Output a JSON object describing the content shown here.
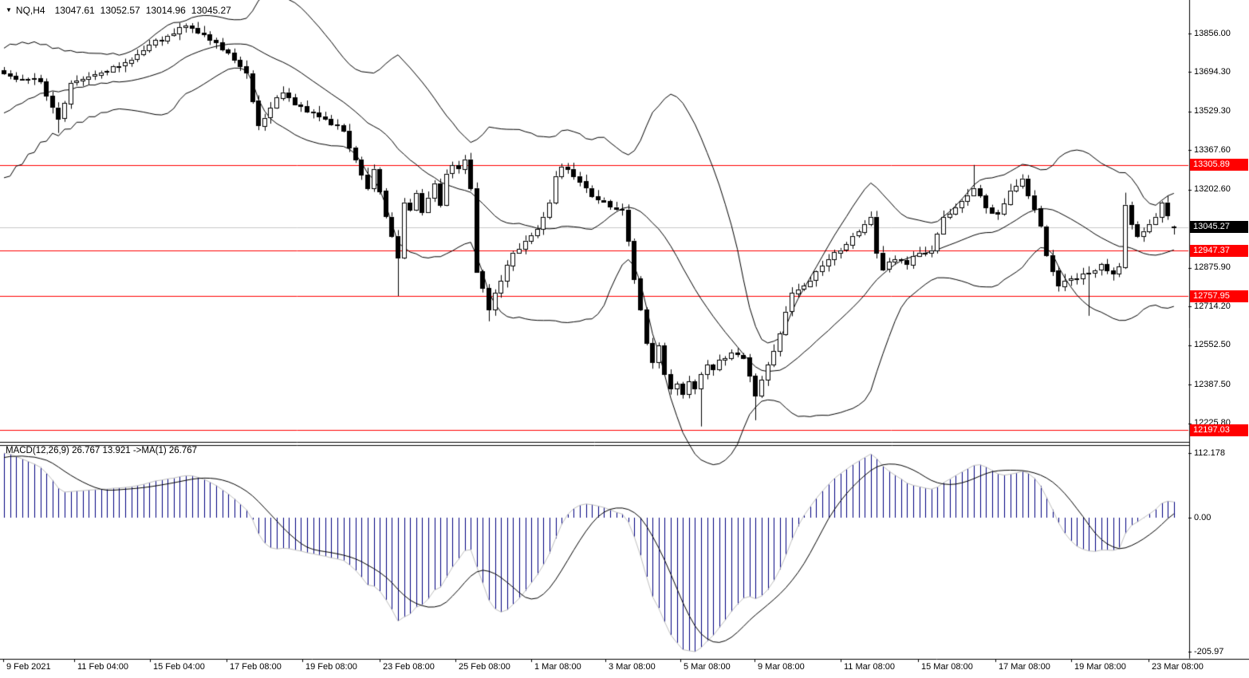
{
  "title": {
    "dropdown_icon": "▼",
    "symbol_period": "NQ,H4",
    "open": "13047.61",
    "high": "13052.57",
    "low": "13014.96",
    "close": "13045.27"
  },
  "macd": {
    "label": "MACD(12,26,9) 26.767 13.921  ->MA(1) 26.767"
  },
  "colors": {
    "background": "#ffffff",
    "foreground": "#000000",
    "bull_body": "#ffffff",
    "bear_body": "#000000",
    "band_line": "#000000",
    "level_line": "#ff0000",
    "level_badge_bg": "#ff0000",
    "level_badge_text": "#ffffff",
    "current_price_line": "#c8c8c8",
    "current_badge_bg": "#000000",
    "current_badge_text": "#ffffff",
    "macd_bar": "#000080",
    "macd_main_line": "#c0c0c0",
    "macd_signal_line": "#000000",
    "axis_text": "#000000"
  },
  "chart_data": {
    "type": "candlestick",
    "symbol": "NQ",
    "timeframe": "H4",
    "current_bar": {
      "open": 13047.61,
      "high": 13052.57,
      "low": 13014.96,
      "close": 13045.27
    },
    "current_price": 13045.27,
    "indicators": [
      {
        "name": "Bollinger Bands",
        "period": 20,
        "deviation": 2
      },
      {
        "name": "MACD",
        "fast": 12,
        "slow": 26,
        "signal": 9,
        "last_main": 26.767,
        "prev_main": 13.921,
        "last_signal": 26.767
      }
    ],
    "horizontal_levels": [
      {
        "label": "13305.89",
        "price": 13305.89
      },
      {
        "label": "12947.37",
        "price": 12947.37
      },
      {
        "label": "12757.95",
        "price": 12757.95
      },
      {
        "label": "12197.03",
        "price": 12197.03
      }
    ],
    "current_price_label": "13045.27",
    "price_axis_range": {
      "top": 13996.2,
      "bottom": 12150.8
    },
    "y_axis_ticks": [
      {
        "label": "13856.00",
        "value": 13856.0
      },
      {
        "label": "13694.30",
        "value": 13694.3
      },
      {
        "label": "13529.30",
        "value": 13529.3
      },
      {
        "label": "13367.60",
        "value": 13367.6
      },
      {
        "label": "13202.60",
        "value": 13202.6
      },
      {
        "label": "12875.90",
        "value": 12875.9
      },
      {
        "label": "12714.20",
        "value": 12714.2
      },
      {
        "label": "12552.50",
        "value": 12552.5
      },
      {
        "label": "12387.50",
        "value": 12387.5
      },
      {
        "label": "12225.80",
        "value": 12225.8
      }
    ],
    "macd_axis": {
      "max": {
        "label": "112.178",
        "value": 112.178
      },
      "zero": {
        "label": "0.00",
        "value": 0
      },
      "min": {
        "label": "-205.97",
        "value": -205.97
      }
    },
    "x_ticks": [
      {
        "label": "9 Feb 2021",
        "x": 8
      },
      {
        "label": "11 Feb 04:00",
        "x": 97
      },
      {
        "label": "15 Feb 04:00",
        "x": 192
      },
      {
        "label": "17 Feb 08:00",
        "x": 288
      },
      {
        "label": "19 Feb 08:00",
        "x": 383
      },
      {
        "label": "23 Feb 08:00",
        "x": 480
      },
      {
        "label": "25 Feb 08:00",
        "x": 575
      },
      {
        "label": "1 Mar 08:00",
        "x": 670
      },
      {
        "label": "3 Mar 08:00",
        "x": 763
      },
      {
        "label": "5 Mar 08:00",
        "x": 857
      },
      {
        "label": "9 Mar 08:00",
        "x": 950
      },
      {
        "label": "11 Mar 08:00",
        "x": 1058
      },
      {
        "label": "15 Mar 08:00",
        "x": 1155
      },
      {
        "label": "17 Mar 08:00",
        "x": 1252
      },
      {
        "label": "19 Mar 08:00",
        "x": 1347
      },
      {
        "label": "23 Mar 08:00",
        "x": 1444
      }
    ],
    "bar_count": 194,
    "close_anchors": [
      [
        0,
        13690
      ],
      [
        3,
        13665
      ],
      [
        6,
        13655
      ],
      [
        9,
        13500
      ],
      [
        11,
        13650
      ],
      [
        15,
        13685
      ],
      [
        19,
        13720
      ],
      [
        24,
        13810
      ],
      [
        28,
        13855
      ],
      [
        30,
        13890
      ],
      [
        32,
        13860
      ],
      [
        34,
        13830
      ],
      [
        36,
        13790
      ],
      [
        38,
        13745
      ],
      [
        40,
        13690
      ],
      [
        42,
        13470
      ],
      [
        44,
        13545
      ],
      [
        46,
        13610
      ],
      [
        48,
        13560
      ],
      [
        50,
        13530
      ],
      [
        53,
        13500
      ],
      [
        56,
        13450
      ],
      [
        58,
        13330
      ],
      [
        60,
        13210
      ],
      [
        61,
        13290
      ],
      [
        63,
        13090
      ],
      [
        64,
        13010
      ],
      [
        65,
        12920
      ],
      [
        66,
        13150
      ],
      [
        67,
        13120
      ],
      [
        68,
        13190
      ],
      [
        69,
        13110
      ],
      [
        70,
        13170
      ],
      [
        71,
        13230
      ],
      [
        72,
        13140
      ],
      [
        73,
        13270
      ],
      [
        74,
        13305
      ],
      [
        75,
        13290
      ],
      [
        76,
        13330
      ],
      [
        77,
        13210
      ],
      [
        78,
        12860
      ],
      [
        79,
        12790
      ],
      [
        80,
        12700
      ],
      [
        82,
        12820
      ],
      [
        84,
        12940
      ],
      [
        86,
        12990
      ],
      [
        88,
        13040
      ],
      [
        90,
        13150
      ],
      [
        91,
        13260
      ],
      [
        92,
        13300
      ],
      [
        93,
        13290
      ],
      [
        94,
        13260
      ],
      [
        96,
        13210
      ],
      [
        98,
        13160
      ],
      [
        100,
        13130
      ],
      [
        102,
        13120
      ],
      [
        103,
        12990
      ],
      [
        104,
        12830
      ],
      [
        105,
        12700
      ],
      [
        106,
        12560
      ],
      [
        107,
        12480
      ],
      [
        108,
        12550
      ],
      [
        109,
        12430
      ],
      [
        110,
        12370
      ],
      [
        111,
        12390
      ],
      [
        112,
        12345
      ],
      [
        113,
        12400
      ],
      [
        114,
        12370
      ],
      [
        115,
        12430
      ],
      [
        116,
        12470
      ],
      [
        117,
        12450
      ],
      [
        118,
        12490
      ],
      [
        120,
        12520
      ],
      [
        122,
        12500
      ],
      [
        124,
        12340
      ],
      [
        126,
        12470
      ],
      [
        128,
        12600
      ],
      [
        130,
        12770
      ],
      [
        132,
        12800
      ],
      [
        134,
        12860
      ],
      [
        136,
        12910
      ],
      [
        138,
        12950
      ],
      [
        140,
        13010
      ],
      [
        142,
        13060
      ],
      [
        143,
        13090
      ],
      [
        144,
        12940
      ],
      [
        145,
        12870
      ],
      [
        147,
        12910
      ],
      [
        149,
        12890
      ],
      [
        151,
        12940
      ],
      [
        153,
        12950
      ],
      [
        155,
        13090
      ],
      [
        157,
        13130
      ],
      [
        159,
        13180
      ],
      [
        160,
        13210
      ],
      [
        162,
        13130
      ],
      [
        164,
        13100
      ],
      [
        166,
        13200
      ],
      [
        168,
        13250
      ],
      [
        169,
        13180
      ],
      [
        171,
        13050
      ],
      [
        172,
        12930
      ],
      [
        174,
        12800
      ],
      [
        176,
        12830
      ],
      [
        178,
        12850
      ],
      [
        179,
        12855
      ],
      [
        181,
        12890
      ],
      [
        183,
        12850
      ],
      [
        184,
        12880
      ],
      [
        185,
        13140
      ],
      [
        186,
        13060
      ],
      [
        187,
        13010
      ],
      [
        188,
        13030
      ],
      [
        189,
        13060
      ],
      [
        190,
        13090
      ],
      [
        191,
        13150
      ],
      [
        192,
        13095
      ],
      [
        193,
        13045.27
      ]
    ],
    "wick_overrides": [
      {
        "i": 9,
        "low": 13440
      },
      {
        "i": 30,
        "high": 13898
      },
      {
        "i": 65,
        "low": 12758
      },
      {
        "i": 80,
        "low": 12652
      },
      {
        "i": 92,
        "high": 13312
      },
      {
        "i": 115,
        "low": 12212
      },
      {
        "i": 124,
        "low": 12238
      },
      {
        "i": 160,
        "high": 13306
      },
      {
        "i": 179,
        "low": 12675
      },
      {
        "i": 185,
        "high": 13190
      }
    ],
    "indicator_preroll": {
      "bars": 30,
      "start": 13150,
      "step": 18,
      "amplitude": 90
    }
  }
}
